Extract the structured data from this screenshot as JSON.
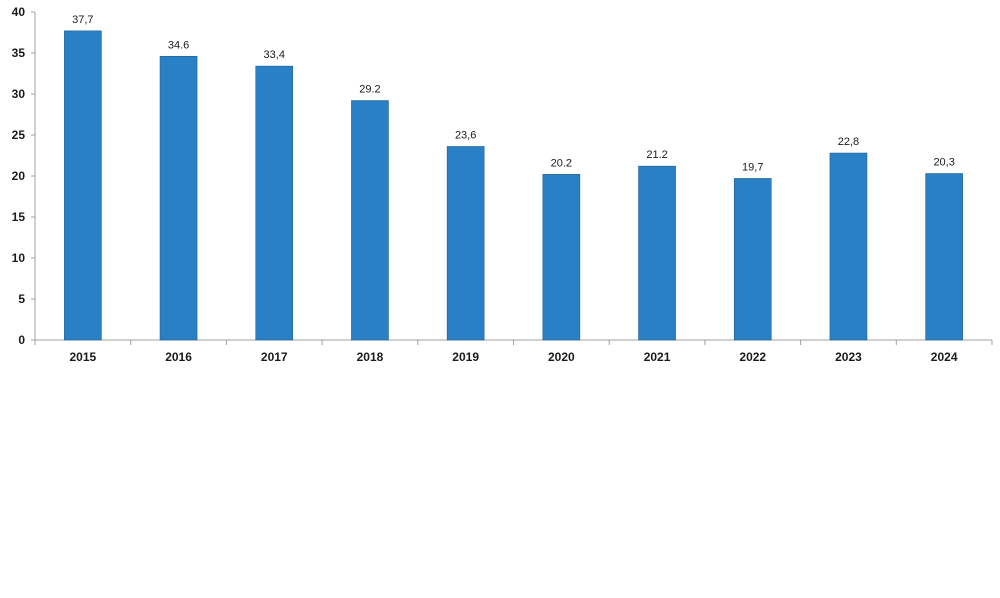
{
  "colors": {
    "bar": "#2a80c5",
    "bar_edge": "#1e5f94",
    "axis": "#a0a0a0",
    "text": "#1a1a1a"
  },
  "chart_data": {
    "type": "bar",
    "title": "",
    "xlabel": "",
    "ylabel": "",
    "categories": [
      "2015",
      "2016",
      "2017",
      "2018",
      "2019",
      "2020",
      "2021",
      "2022",
      "2023",
      "2024"
    ],
    "values": [
      37.7,
      34.6,
      33.4,
      29.2,
      23.6,
      20.2,
      21.2,
      19.7,
      22.8,
      20.3
    ],
    "data_labels": [
      "37,7",
      "34.6",
      "33,4",
      "29.2",
      "23,6",
      "20.2",
      "21.2",
      "19,7",
      "22,8",
      "20,3"
    ],
    "ylim": [
      0,
      40
    ],
    "yticks": [
      0,
      5,
      10,
      15,
      20,
      25,
      30,
      35,
      40
    ],
    "grid": false,
    "legend": "none"
  }
}
